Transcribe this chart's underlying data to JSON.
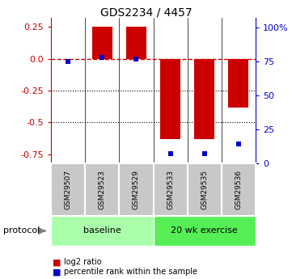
{
  "title": "GDS2234 / 4457",
  "samples": [
    "GSM29507",
    "GSM29523",
    "GSM29529",
    "GSM29533",
    "GSM29535",
    "GSM29536"
  ],
  "log2_ratio": [
    0.0,
    0.25,
    0.25,
    -0.63,
    -0.63,
    -0.38
  ],
  "percentile_rank": [
    75,
    78,
    77,
    7,
    7,
    14
  ],
  "bar_color": "#cc0000",
  "dot_color": "#0000cc",
  "ylim_left": [
    -0.82,
    0.32
  ],
  "ylim_right": [
    0,
    107
  ],
  "yticks_left": [
    0.25,
    0.0,
    -0.25,
    -0.5,
    -0.75
  ],
  "yticks_right": [
    100,
    75,
    50,
    25,
    0
  ],
  "hline_y": 0.0,
  "dotted_lines": [
    -0.25,
    -0.5
  ],
  "baseline_color": "#aaffaa",
  "exercise_color": "#55ee55",
  "gray_box_color": "#c8c8c8",
  "label_color_red": "#cc0000",
  "label_color_blue": "#0000cc",
  "protocol_text": "protocol",
  "baseline_text": "baseline",
  "exercise_text": "20 wk exercise",
  "legend_red": "log2 ratio",
  "legend_blue": "percentile rank within the sample",
  "bar_width": 0.6,
  "n_baseline": 3,
  "n_exercise": 3
}
